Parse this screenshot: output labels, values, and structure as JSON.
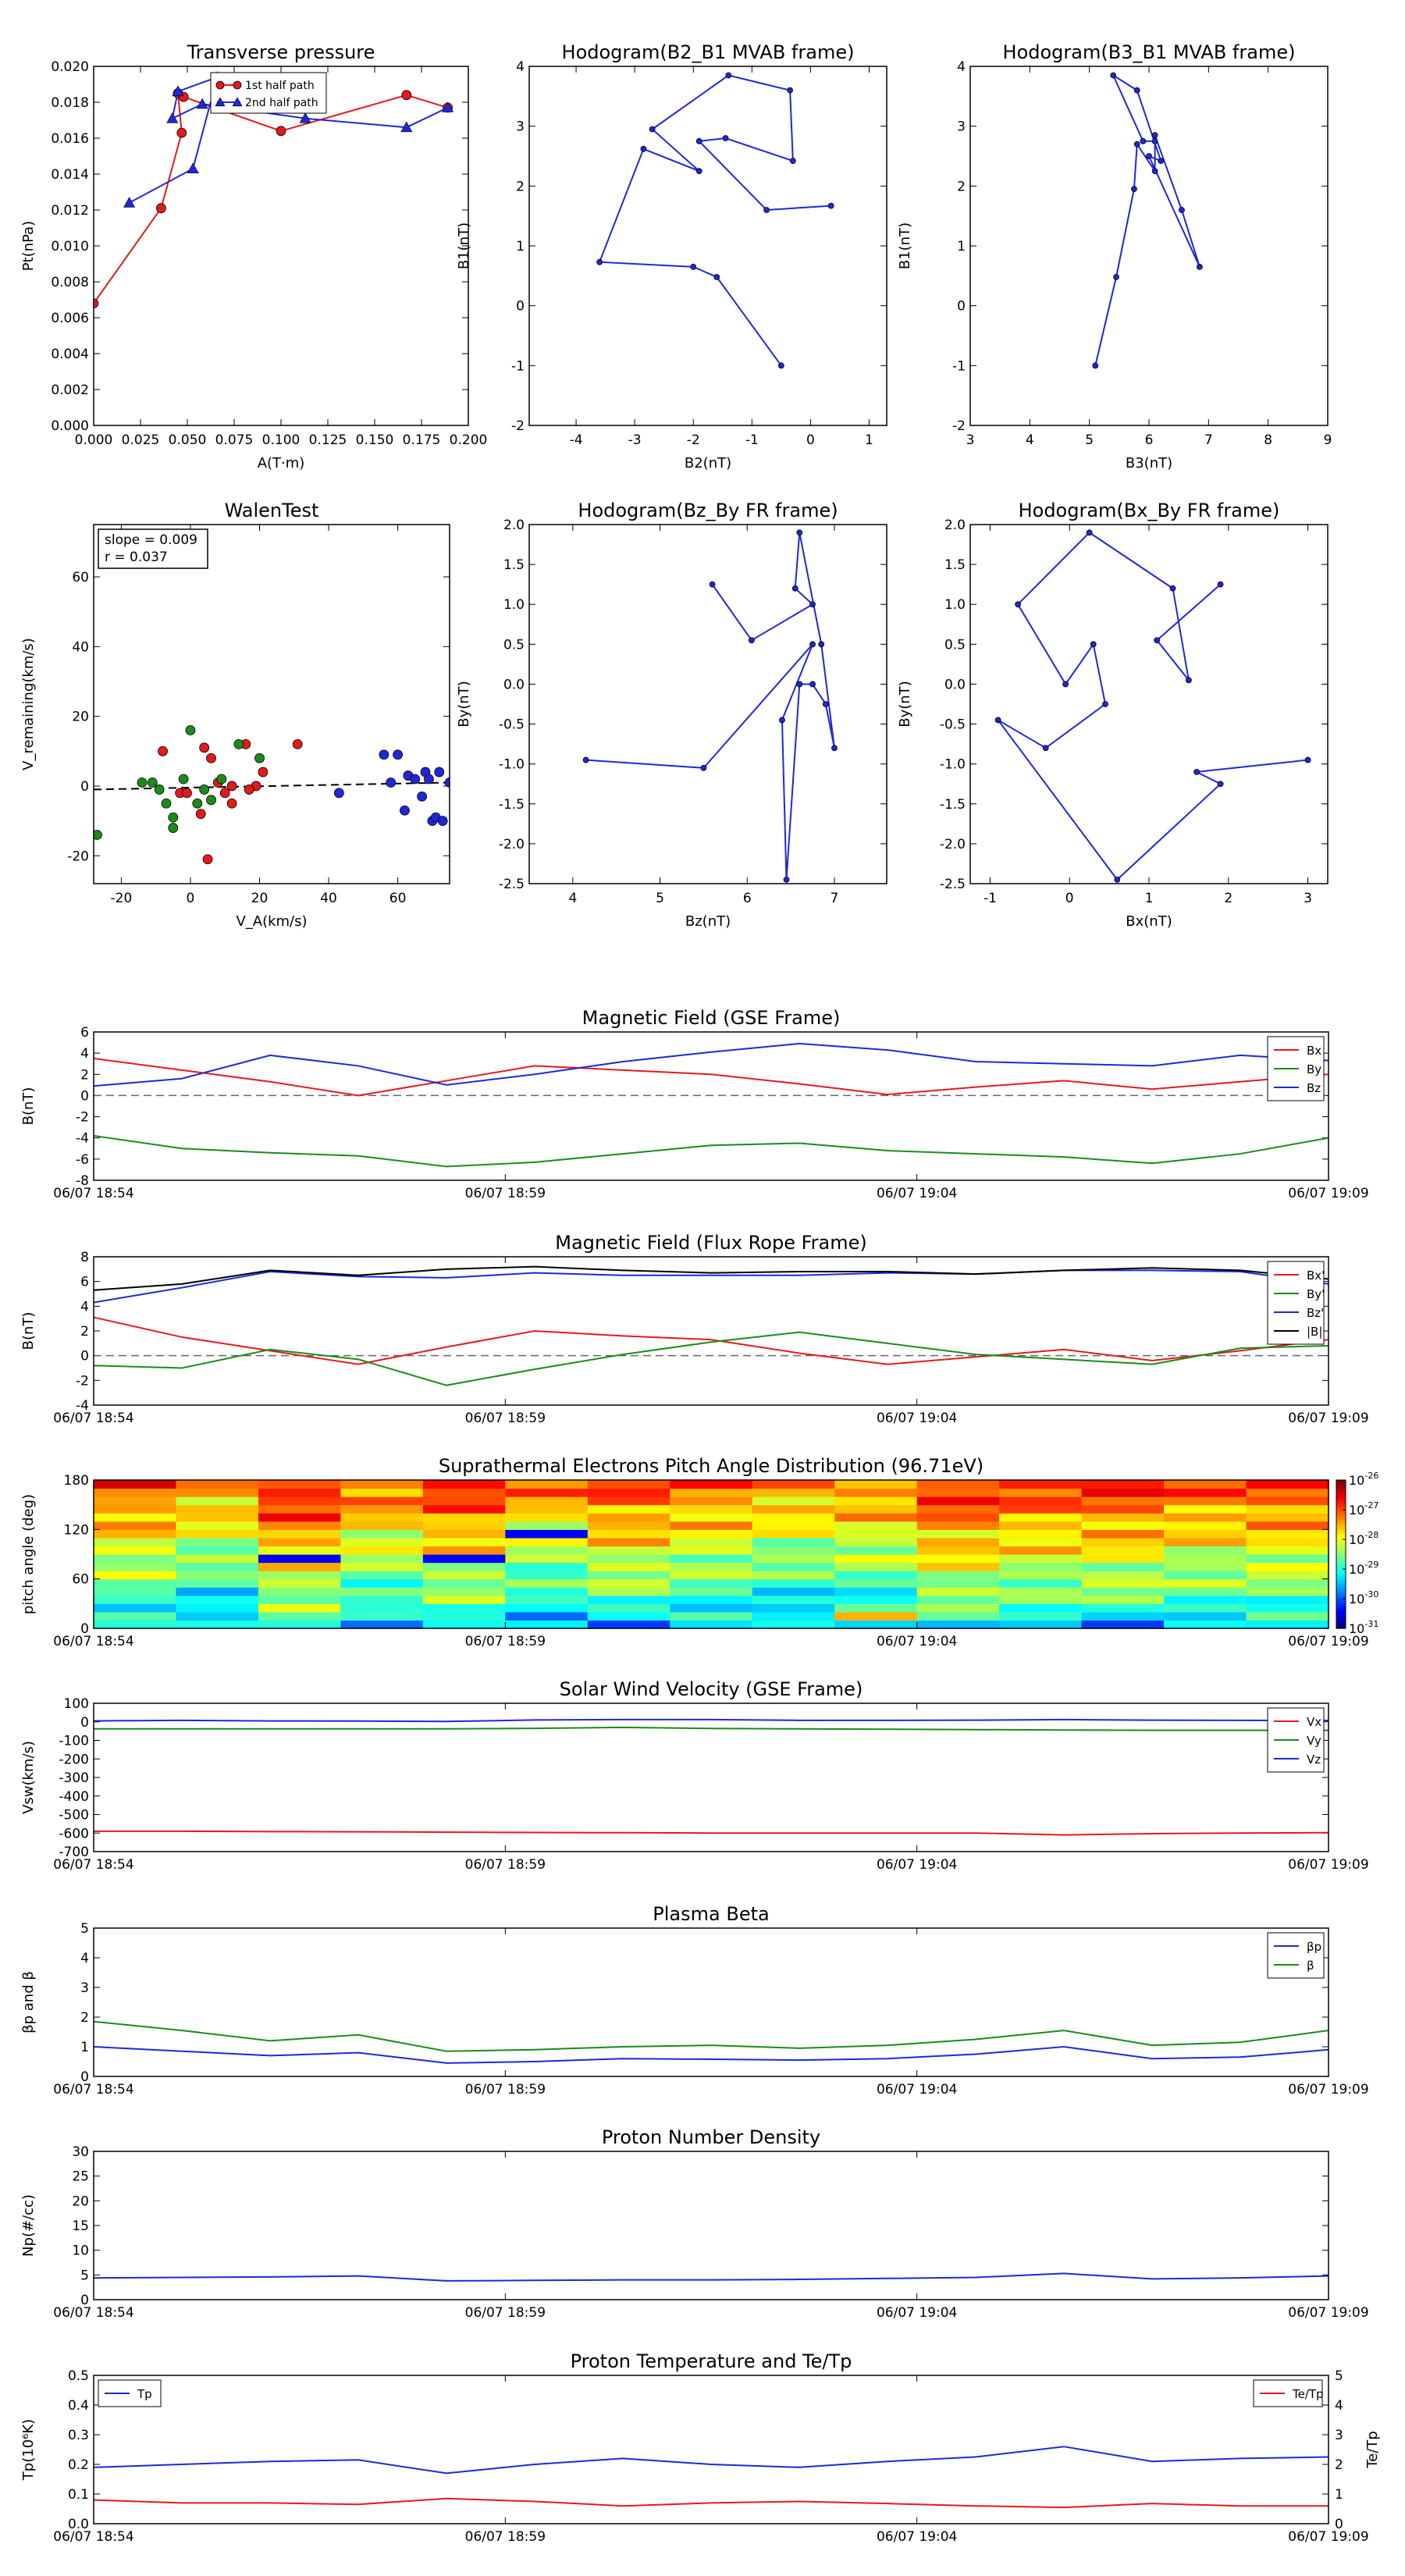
{
  "colors": {
    "red": "#e31a1c",
    "green": "#1a8c1a",
    "blue": "#1f28d6",
    "black": "#000000",
    "dashed": "#666666"
  },
  "time_ticks": [
    "06/07 18:54",
    "06/07 18:59",
    "06/07 19:04",
    "06/07 19:09"
  ],
  "chart_data": [
    {
      "id": "transverse-pressure",
      "type": "line",
      "title": "Transverse pressure",
      "xlabel": "A(T·m)",
      "ylabel": "Pt(nPa)",
      "xlim": [
        0,
        0.2
      ],
      "ylim": [
        0,
        0.02
      ],
      "xticks": [
        "0.000",
        "0.025",
        "0.050",
        "0.075",
        "0.100",
        "0.125",
        "0.150",
        "0.175",
        "0.200"
      ],
      "yticks": [
        "0.000",
        "0.002",
        "0.004",
        "0.006",
        "0.008",
        "0.010",
        "0.012",
        "0.014",
        "0.016",
        "0.018",
        "0.020"
      ],
      "legend": "top-center",
      "series": [
        {
          "name": "1st half path",
          "color": "red",
          "marker": "circle",
          "x": [
            0.0,
            0.036,
            0.047,
            0.045,
            0.048,
            0.1,
            0.167,
            0.189
          ],
          "y": [
            0.0068,
            0.0121,
            0.0163,
            0.0185,
            0.0183,
            0.0164,
            0.0184,
            0.0177
          ]
        },
        {
          "name": "2nd half path",
          "color": "blue",
          "marker": "triangle",
          "x": [
            0.189,
            0.167,
            0.113,
            0.058,
            0.042,
            0.045,
            0.066,
            0.053,
            0.019
          ],
          "y": [
            0.0177,
            0.0166,
            0.0171,
            0.0179,
            0.0171,
            0.0186,
            0.0194,
            0.0143,
            0.0124
          ]
        }
      ]
    },
    {
      "id": "hodogram-b2-b1",
      "type": "line",
      "title": "Hodogram(B2_B1 MVAB frame)",
      "xlabel": "B2(nT)",
      "ylabel": "B1(nT)",
      "xlim": [
        -4.8,
        1.3
      ],
      "ylim": [
        -2,
        4
      ],
      "xticks_v": [
        -4,
        -3,
        -2,
        -1,
        0,
        1
      ],
      "yticks_v": [
        -2,
        -1,
        0,
        1,
        2,
        3,
        4
      ],
      "series": [
        {
          "color": "blue",
          "x": [
            -0.5,
            -1.6,
            -2.0,
            -3.6,
            -2.85,
            -1.9,
            -2.7,
            -1.4,
            -0.35,
            -0.3,
            -1.45,
            -1.9,
            -0.75,
            0.35
          ],
          "y": [
            -1.0,
            0.48,
            0.65,
            0.73,
            2.62,
            2.25,
            2.95,
            3.85,
            3.6,
            2.42,
            2.8,
            2.75,
            1.6,
            1.67
          ]
        }
      ]
    },
    {
      "id": "hodogram-b3-b1",
      "type": "line",
      "title": "Hodogram(B3_B1 MVAB frame)",
      "xlabel": "B3(nT)",
      "ylabel": "B1(nT)",
      "xlim": [
        3,
        9
      ],
      "ylim": [
        -2,
        4
      ],
      "xticks_v": [
        3,
        4,
        5,
        6,
        7,
        8,
        9
      ],
      "yticks_v": [
        -2,
        -1,
        0,
        1,
        2,
        3,
        4
      ],
      "series": [
        {
          "color": "blue",
          "x": [
            5.1,
            5.45,
            5.75,
            5.8,
            6.1,
            6.1,
            5.9,
            5.4,
            5.8,
            6.2,
            6.0,
            6.85,
            6.55,
            6.1
          ],
          "y": [
            -1.0,
            0.48,
            1.95,
            2.7,
            2.25,
            2.75,
            2.75,
            3.85,
            3.6,
            2.42,
            2.5,
            0.65,
            1.6,
            2.85
          ]
        }
      ]
    },
    {
      "id": "walen-test",
      "type": "scatter",
      "title": "WalenTest",
      "xlabel": "V_A(km/s)",
      "ylabel": "V_remaining(km/s)",
      "xlim": [
        -28,
        75
      ],
      "ylim": [
        -28,
        75
      ],
      "xticks_v": [
        -20,
        0,
        20,
        40,
        60
      ],
      "yticks_v": [
        -20,
        0,
        20,
        40,
        60
      ],
      "annotation": [
        "slope = 0.009",
        "r = 0.037"
      ],
      "series": [
        {
          "color": "red",
          "x": [
            -8,
            -3,
            4,
            6,
            10,
            12,
            16,
            19,
            21,
            -1,
            3,
            8,
            12,
            17,
            31,
            5
          ],
          "y": [
            10,
            -2,
            11,
            8,
            -2,
            -5,
            12,
            0,
            4,
            -2,
            -8,
            1,
            0,
            -1,
            12,
            -21
          ]
        },
        {
          "color": "green",
          "x": [
            -27,
            -14,
            -11,
            -9,
            -7,
            -5,
            -2,
            0,
            2,
            4,
            6,
            9,
            14,
            -5,
            20
          ],
          "y": [
            -14,
            1,
            1,
            -1,
            -5,
            -9,
            2,
            16,
            -5,
            -1,
            -4,
            2,
            12,
            -12,
            8
          ]
        },
        {
          "color": "blue",
          "x": [
            43,
            56,
            58,
            60,
            63,
            65,
            67,
            68,
            69,
            70,
            71,
            72,
            73,
            75,
            62
          ],
          "y": [
            -2,
            9,
            1,
            9,
            3,
            2,
            -3,
            4,
            2,
            -10,
            -9,
            4,
            -10,
            1,
            -7
          ]
        }
      ],
      "refline": {
        "x": [
          -28,
          75
        ],
        "y": [
          -1,
          1
        ]
      }
    },
    {
      "id": "hodogram-bz-by",
      "type": "line",
      "title": "Hodogram(Bz_By FR frame)",
      "xlabel": "Bz(nT)",
      "ylabel": "By(nT)",
      "xlim": [
        3.5,
        7.6
      ],
      "ylim": [
        -2.5,
        2.0
      ],
      "xticks_v": [
        4,
        5,
        6,
        7
      ],
      "yticks_v": [
        -2.5,
        -2.0,
        -1.5,
        -1.0,
        -0.5,
        0.0,
        0.5,
        1.0,
        1.5,
        2.0
      ],
      "series": [
        {
          "color": "blue",
          "x": [
            4.15,
            5.5,
            6.75,
            6.4,
            6.45,
            6.6,
            6.75,
            6.9,
            7.0,
            6.85,
            6.6,
            6.55,
            6.75,
            6.05,
            5.6
          ],
          "y": [
            -0.95,
            -1.05,
            0.5,
            -0.45,
            -2.45,
            0.0,
            0.0,
            -0.25,
            -0.8,
            0.5,
            1.9,
            1.2,
            1.0,
            0.55,
            1.25
          ]
        }
      ]
    },
    {
      "id": "hodogram-bx-by",
      "type": "line",
      "title": "Hodogram(Bx_By FR frame)",
      "xlabel": "Bx(nT)",
      "ylabel": "By(nT)",
      "xlim": [
        -1.25,
        3.25
      ],
      "ylim": [
        -2.5,
        2.0
      ],
      "xticks_v": [
        -1,
        0,
        1,
        2,
        3
      ],
      "yticks_v": [
        -2.5,
        -2.0,
        -1.5,
        -1.0,
        -0.5,
        0.0,
        0.5,
        1.0,
        1.5,
        2.0
      ],
      "series": [
        {
          "color": "blue",
          "x": [
            3.0,
            1.6,
            1.9,
            0.6,
            -0.9,
            -0.3,
            0.45,
            0.3,
            -0.05,
            -0.65,
            0.25,
            1.3,
            1.5,
            1.1,
            1.9
          ],
          "y": [
            -0.95,
            -1.1,
            -1.25,
            -2.45,
            -0.45,
            -0.8,
            -0.25,
            0.5,
            0.0,
            1.0,
            1.9,
            1.2,
            0.05,
            0.55,
            1.25
          ]
        }
      ]
    },
    {
      "id": "mag-gse",
      "type": "line",
      "title": "Magnetic Field (GSE Frame)",
      "ylabel": "B(nT)",
      "ylim": [
        -8,
        6
      ],
      "yticks_v": [
        -8,
        -6,
        -4,
        -2,
        0,
        2,
        4,
        6
      ],
      "zero_line": true,
      "legend": "top-right",
      "series": [
        {
          "name": "Bx",
          "color": "red",
          "values": [
            3.5,
            2.4,
            1.3,
            0.0,
            1.4,
            2.8,
            2.4,
            2.0,
            1.1,
            0.1,
            0.8,
            1.4,
            0.6,
            1.3,
            2.0
          ]
        },
        {
          "name": "By",
          "color": "green",
          "values": [
            -3.8,
            -5.0,
            -5.4,
            -5.7,
            -6.7,
            -6.3,
            -5.5,
            -4.7,
            -4.5,
            -5.2,
            -5.5,
            -5.8,
            -6.4,
            -5.5,
            -4.0
          ]
        },
        {
          "name": "Bz",
          "color": "blue",
          "values": [
            0.9,
            1.6,
            3.8,
            2.8,
            1.0,
            2.0,
            3.2,
            4.1,
            4.9,
            4.3,
            3.2,
            3.0,
            2.8,
            3.8,
            3.3
          ]
        }
      ]
    },
    {
      "id": "mag-fr",
      "type": "line",
      "title": "Magnetic Field (Flux Rope Frame)",
      "ylabel": "B(nT)",
      "ylim": [
        -4,
        8
      ],
      "yticks_v": [
        -4,
        -2,
        0,
        2,
        4,
        6,
        8
      ],
      "zero_line": true,
      "legend": "top-right",
      "series": [
        {
          "name": "Bx'",
          "color": "red",
          "values": [
            3.1,
            1.5,
            0.4,
            -0.7,
            0.7,
            2.0,
            1.6,
            1.3,
            0.2,
            -0.7,
            -0.1,
            0.5,
            -0.4,
            0.4,
            1.3
          ]
        },
        {
          "name": "By'",
          "color": "green",
          "values": [
            -0.8,
            -1.0,
            0.5,
            -0.3,
            -2.4,
            -1.1,
            0.1,
            1.1,
            1.9,
            1.0,
            0.1,
            -0.3,
            -0.7,
            0.6,
            0.8
          ]
        },
        {
          "name": "Bz'",
          "color": "blue",
          "values": [
            4.3,
            5.5,
            6.8,
            6.4,
            6.3,
            6.7,
            6.5,
            6.5,
            6.5,
            6.7,
            6.6,
            6.9,
            6.9,
            6.8,
            5.8
          ]
        },
        {
          "name": "|B|",
          "color": "black",
          "values": [
            5.3,
            5.8,
            6.9,
            6.5,
            7.0,
            7.2,
            6.9,
            6.7,
            6.8,
            6.8,
            6.6,
            6.9,
            7.1,
            6.9,
            6.2
          ]
        }
      ]
    },
    {
      "id": "pad",
      "type": "heatmap",
      "title": "Suprathermal Electrons Pitch Angle Distribution (96.71eV)",
      "ylabel": "pitch angle (deg)",
      "ylim": [
        0,
        180
      ],
      "yticks_v": [
        0,
        60,
        120,
        180
      ],
      "colorbar": {
        "ticks": [
          "-26",
          "-27",
          "-28",
          "-29",
          "-30",
          "-31"
        ],
        "range": [
          -31,
          -26
        ]
      },
      "columns": 15,
      "rows": 18,
      "base": [
        -27.6,
        -27.9,
        -27.2,
        -27.7,
        -27.4,
        -27.8,
        -27.5,
        -27.7,
        -27.9,
        -27.8,
        -27.3,
        -27.5,
        -27.4,
        -27.6,
        -27.5
      ]
    },
    {
      "id": "vsw",
      "type": "line",
      "title": "Solar Wind Velocity (GSE Frame)",
      "ylabel": "Vsw(km/s)",
      "ylim": [
        -700,
        100
      ],
      "yticks_v": [
        -700,
        -600,
        -500,
        -400,
        -300,
        -200,
        -100,
        0,
        100
      ],
      "legend": "top-right",
      "series": [
        {
          "name": "Vx",
          "color": "red",
          "values": [
            -590,
            -590,
            -592,
            -593,
            -595,
            -597,
            -598,
            -600,
            -600,
            -600,
            -600,
            -610,
            -603,
            -600,
            -598
          ]
        },
        {
          "name": "Vy",
          "color": "green",
          "values": [
            -38,
            -38,
            -38,
            -38,
            -38,
            -35,
            -30,
            -36,
            -38,
            -40,
            -42,
            -44,
            -46,
            -46,
            -46
          ]
        },
        {
          "name": "Vz",
          "color": "blue",
          "values": [
            5,
            8,
            5,
            4,
            2,
            10,
            12,
            12,
            8,
            8,
            9,
            12,
            9,
            8,
            7
          ]
        }
      ]
    },
    {
      "id": "beta",
      "type": "line",
      "title": "Plasma Beta",
      "ylabel": "βp and β",
      "ylim": [
        0,
        5
      ],
      "yticks_v": [
        0,
        1,
        2,
        3,
        4,
        5
      ],
      "legend": "top-right",
      "series": [
        {
          "name": "βp",
          "color": "blue",
          "values": [
            1.0,
            0.85,
            0.7,
            0.8,
            0.45,
            0.5,
            0.6,
            0.58,
            0.55,
            0.6,
            0.75,
            1.0,
            0.6,
            0.65,
            0.9
          ]
        },
        {
          "name": "β",
          "color": "green",
          "values": [
            1.85,
            1.55,
            1.2,
            1.4,
            0.85,
            0.9,
            1.0,
            1.05,
            0.95,
            1.05,
            1.25,
            1.55,
            1.05,
            1.15,
            1.55
          ]
        }
      ]
    },
    {
      "id": "np",
      "type": "line",
      "title": "Proton Number Density",
      "ylabel": "Np(#/cc)",
      "ylim": [
        0,
        30
      ],
      "yticks_v": [
        0,
        5,
        10,
        15,
        20,
        25,
        30
      ],
      "series": [
        {
          "color": "blue",
          "values": [
            4.4,
            4.5,
            4.6,
            4.8,
            3.8,
            3.9,
            4.0,
            4.0,
            4.1,
            4.3,
            4.5,
            5.3,
            4.2,
            4.4,
            4.8
          ]
        }
      ]
    },
    {
      "id": "tp",
      "type": "line",
      "title": "Proton Temperature and Te/Tp",
      "ylabel": "Tp(10⁶K)",
      "ylabel_right": "Te/Tp",
      "ylim": [
        0,
        0.5
      ],
      "yticks": [
        "0.0",
        "0.1",
        "0.2",
        "0.3",
        "0.4",
        "0.5"
      ],
      "ylim_right": [
        0,
        5
      ],
      "yticks_right_v": [
        0,
        1,
        2,
        3,
        4,
        5
      ],
      "legend_left": "top-left",
      "legend_right": "top-right",
      "series": [
        {
          "name": "Tp",
          "color": "blue",
          "axis": "left",
          "values": [
            0.19,
            0.2,
            0.21,
            0.215,
            0.17,
            0.2,
            0.22,
            0.2,
            0.19,
            0.21,
            0.225,
            0.26,
            0.21,
            0.22,
            0.225
          ]
        },
        {
          "name": "Te/Tp",
          "color": "red",
          "axis": "right",
          "values": [
            0.8,
            0.7,
            0.7,
            0.65,
            0.85,
            0.75,
            0.6,
            0.7,
            0.75,
            0.68,
            0.6,
            0.55,
            0.68,
            0.6,
            0.6
          ]
        }
      ]
    }
  ]
}
